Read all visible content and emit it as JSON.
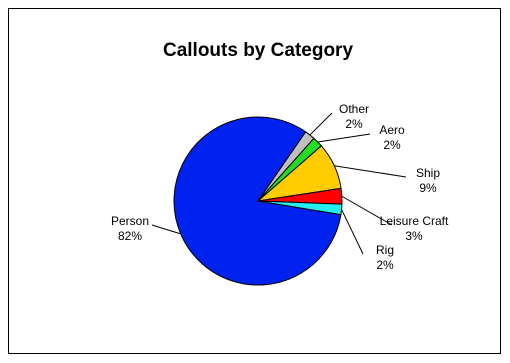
{
  "chart_data": {
    "type": "pie",
    "title": "Callouts by Category",
    "legend": "none",
    "slices": [
      {
        "name": "Person",
        "value": 82,
        "label": "82%",
        "color": "#0022ee"
      },
      {
        "name": "Other",
        "value": 2,
        "label": "2%",
        "color": "#c0c0c0"
      },
      {
        "name": "Aero",
        "value": 2,
        "label": "2%",
        "color": "#22dd22"
      },
      {
        "name": "Ship",
        "value": 9,
        "label": "9%",
        "color": "#ffcc00"
      },
      {
        "name": "Leisure Craft",
        "value": 3,
        "label": "3%",
        "color": "#ff0000"
      },
      {
        "name": "Rig",
        "value": 2,
        "label": "2%",
        "color": "#22eeee"
      }
    ]
  }
}
